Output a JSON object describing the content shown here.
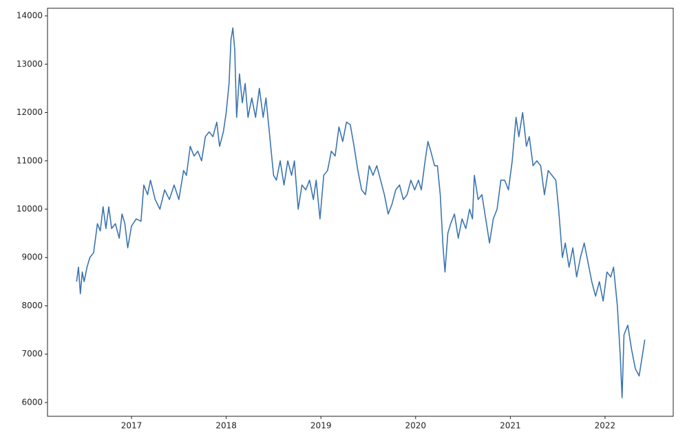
{
  "chart_data": {
    "type": "line",
    "x": [
      2016.42,
      2016.44,
      2016.46,
      2016.48,
      2016.5,
      2016.53,
      2016.56,
      2016.6,
      2016.64,
      2016.67,
      2016.7,
      2016.73,
      2016.76,
      2016.79,
      2016.83,
      2016.87,
      2016.9,
      2016.93,
      2016.96,
      2017.0,
      2017.05,
      2017.1,
      2017.13,
      2017.17,
      2017.2,
      2017.25,
      2017.3,
      2017.35,
      2017.4,
      2017.45,
      2017.5,
      2017.55,
      2017.58,
      2017.62,
      2017.66,
      2017.7,
      2017.74,
      2017.78,
      2017.82,
      2017.86,
      2017.9,
      2017.93,
      2017.97,
      2018.0,
      2018.03,
      2018.05,
      2018.07,
      2018.09,
      2018.11,
      2018.14,
      2018.17,
      2018.2,
      2018.23,
      2018.27,
      2018.31,
      2018.35,
      2018.39,
      2018.42,
      2018.46,
      2018.5,
      2018.53,
      2018.57,
      2018.61,
      2018.65,
      2018.69,
      2018.72,
      2018.76,
      2018.8,
      2018.84,
      2018.88,
      2018.92,
      2018.95,
      2018.99,
      2019.03,
      2019.07,
      2019.11,
      2019.15,
      2019.19,
      2019.23,
      2019.27,
      2019.31,
      2019.35,
      2019.39,
      2019.43,
      2019.47,
      2019.51,
      2019.55,
      2019.59,
      2019.63,
      2019.67,
      2019.71,
      2019.75,
      2019.79,
      2019.83,
      2019.87,
      2019.91,
      2019.95,
      2019.99,
      2020.03,
      2020.06,
      2020.1,
      2020.13,
      2020.16,
      2020.2,
      2020.23,
      2020.26,
      2020.29,
      2020.31,
      2020.34,
      2020.37,
      2020.41,
      2020.45,
      2020.49,
      2020.53,
      2020.57,
      2020.6,
      2020.62,
      2020.66,
      2020.7,
      2020.74,
      2020.78,
      2020.82,
      2020.86,
      2020.9,
      2020.94,
      2020.98,
      2021.02,
      2021.06,
      2021.09,
      2021.13,
      2021.17,
      2021.2,
      2021.24,
      2021.28,
      2021.32,
      2021.36,
      2021.4,
      2021.44,
      2021.48,
      2021.51,
      2021.55,
      2021.58,
      2021.62,
      2021.66,
      2021.7,
      2021.74,
      2021.78,
      2021.82,
      2021.86,
      2021.9,
      2021.94,
      2021.98,
      2022.02,
      2022.06,
      2022.09,
      2022.13,
      2022.16,
      2022.18,
      2022.2,
      2022.24,
      2022.28,
      2022.32,
      2022.36,
      2022.42
    ],
    "series": [
      {
        "color": "#3a74b0",
        "values": [
          8500,
          8800,
          8250,
          8700,
          8500,
          8800,
          9000,
          9100,
          9700,
          9550,
          10050,
          9600,
          10050,
          9600,
          9700,
          9400,
          9900,
          9700,
          9200,
          9650,
          9800,
          9750,
          10500,
          10300,
          10600,
          10200,
          10000,
          10400,
          10200,
          10500,
          10200,
          10800,
          10700,
          11300,
          11100,
          11200,
          11000,
          11500,
          11600,
          11500,
          11800,
          11300,
          11600,
          12000,
          12600,
          13500,
          13750,
          13300,
          11900,
          12800,
          12200,
          12600,
          11900,
          12300,
          11900,
          12500,
          11900,
          12300,
          11500,
          10700,
          10600,
          11000,
          10500,
          11000,
          10700,
          11000,
          10000,
          10500,
          10400,
          10600,
          10200,
          10600,
          9800,
          10700,
          10800,
          11200,
          11100,
          11700,
          11400,
          11800,
          11750,
          11300,
          10800,
          10400,
          10300,
          10900,
          10700,
          10900,
          10600,
          10300,
          9900,
          10100,
          10400,
          10500,
          10200,
          10300,
          10600,
          10400,
          10600,
          10400,
          11000,
          11400,
          11200,
          10900,
          10900,
          10300,
          9200,
          8700,
          9500,
          9700,
          9900,
          9400,
          9800,
          9600,
          10000,
          9800,
          10700,
          10200,
          10300,
          9800,
          9300,
          9800,
          10000,
          10600,
          10600,
          10400,
          11000,
          11900,
          11500,
          12000,
          11300,
          11500,
          10900,
          11000,
          10900,
          10300,
          10800,
          10700,
          10600,
          10000,
          9000,
          9300,
          8800,
          9200,
          8600,
          9000,
          9300,
          8900,
          8500,
          8200,
          8500,
          8100,
          8700,
          8600,
          8800,
          8000,
          7000,
          6100,
          7400,
          7600,
          7100,
          6700,
          6550,
          7300
        ]
      }
    ],
    "xlim": [
      2016.113,
      2022.72
    ],
    "xticks": [
      2017,
      2018,
      2019,
      2020,
      2021,
      2022
    ],
    "ylim": [
      5715,
      14157
    ],
    "yticks": [
      6000,
      7000,
      8000,
      9000,
      10000,
      11000,
      12000,
      13000,
      14000
    ]
  }
}
